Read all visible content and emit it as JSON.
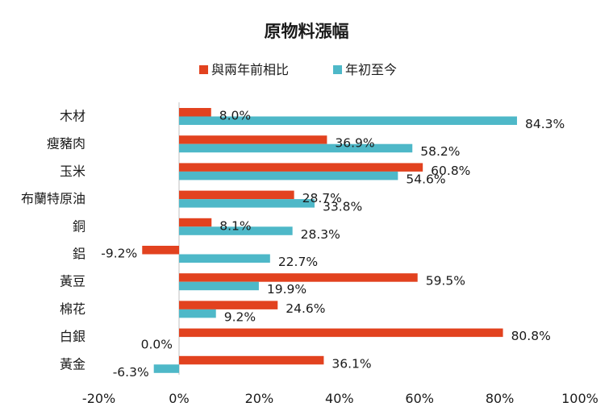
{
  "chart_data": {
    "type": "bar",
    "orientation": "horizontal",
    "title": "原物料漲幅",
    "categories": [
      "木材",
      "瘦豬肉",
      "玉米",
      "布蘭特原油",
      "銅",
      "鋁",
      "黃豆",
      "棉花",
      "白銀",
      "黃金"
    ],
    "series": [
      {
        "name": "與兩年前相比",
        "color": "#e2421f",
        "values": [
          8.0,
          36.9,
          60.8,
          28.7,
          8.1,
          -9.2,
          59.5,
          24.6,
          80.8,
          36.1
        ],
        "labels": [
          "8.0%",
          "36.9%",
          "60.8%",
          "28.7%",
          "8.1%",
          "-9.2%",
          "59.5%",
          "24.6%",
          "80.8%",
          "36.1%"
        ]
      },
      {
        "name": "年初至今",
        "color": "#4eb8c8",
        "values": [
          84.3,
          58.2,
          54.6,
          33.8,
          28.3,
          22.7,
          19.9,
          9.2,
          0.0,
          -6.3
        ],
        "labels": [
          "84.3%",
          "58.2%",
          "54.6%",
          "33.8%",
          "28.3%",
          "22.7%",
          "19.9%",
          "9.2%",
          "0.0%",
          "-6.3%"
        ]
      }
    ],
    "xlim": [
      -20,
      100
    ],
    "x_ticks": [
      -20,
      0,
      20,
      40,
      60,
      80,
      100
    ],
    "x_tick_labels": [
      "-20%",
      "0%",
      "20%",
      "40%",
      "60%",
      "80%",
      "100%"
    ],
    "legend_position": "top",
    "grid": false
  }
}
